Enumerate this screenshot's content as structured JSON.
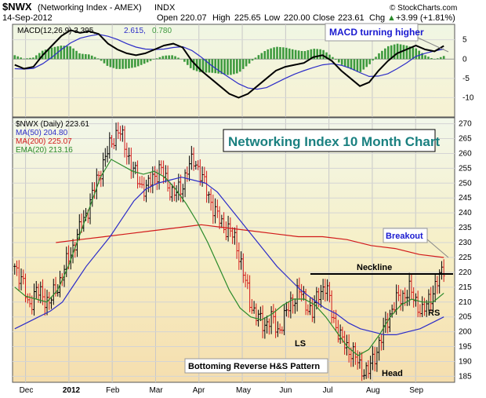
{
  "header": {
    "symbol": "$NWX",
    "name": "(Networking Index - AMEX)",
    "exchange": "INDX",
    "date": "14-Sep-2012",
    "open_label": "Open",
    "open": "220.07",
    "high_label": "High",
    "high": "225.65",
    "low_label": "Low",
    "low": "220.00",
    "close_label": "Close",
    "close": "223.61",
    "chg_label": "Chg",
    "chg": "+3.99 (+1.81%)",
    "chg_arrow": "▲",
    "watermark": "© StockCharts.com"
  },
  "colors": {
    "background_top": "#f2f7ea",
    "background_bottom": "#f5deae",
    "macd_line": "#000000",
    "signal_line": "#2c2cc8",
    "histogram": "#3e9a3e",
    "ma50": "#2c2cc8",
    "ma200": "#d21a1a",
    "ema20": "#2a8a2a",
    "up_bar": "#000000",
    "down_bar": "#d21a1a",
    "title_box": "#1a8080"
  },
  "chart_data": [
    {
      "type": "line",
      "panel": "macd",
      "legend": {
        "macd_label": "MACD(12,26,9) 3.395,",
        "signal_label": "2.615,",
        "hist_label": "0.780"
      },
      "ylim": [
        -15,
        9
      ],
      "yticks": [
        "5",
        "0",
        "-5",
        "-10"
      ],
      "months_x": [
        0.3,
        1.3,
        2.3,
        3.3,
        4.3,
        5.3,
        6.3,
        7.3,
        8.3,
        9.3
      ],
      "macd": [
        -1.5,
        -2.5,
        -2,
        1,
        3.5,
        6,
        7.5,
        6.8,
        7.2,
        6.5,
        4,
        2.5,
        1.5,
        1,
        1.5,
        2.5,
        3.5,
        4,
        3,
        -0.5,
        -3,
        -5,
        -7,
        -9,
        -10,
        -9,
        -7,
        -5,
        -3,
        -2,
        -1.5,
        -1,
        0.5,
        1,
        -0.5,
        -3,
        -5,
        -7,
        -6,
        -3,
        -0.5,
        1.5,
        2.5,
        3.5,
        2.5,
        2,
        3.4
      ],
      "signal": [
        -2.5,
        -2.6,
        -2.4,
        -1.2,
        0.5,
        2.5,
        4.2,
        5.4,
        6,
        6.4,
        5.9,
        5.1,
        4,
        3.1,
        2.6,
        2.5,
        2.6,
        3,
        3.2,
        2.2,
        0.5,
        -1.5,
        -3.2,
        -4.8,
        -6.4,
        -7.5,
        -7.8,
        -7.4,
        -6.2,
        -5,
        -3.9,
        -3,
        -2.2,
        -1.5,
        -1.2,
        -1.6,
        -2.4,
        -3.5,
        -4.5,
        -4.4,
        -3.8,
        -2.5,
        -1,
        0.7,
        1.5,
        2.1,
        2.6
      ],
      "annotation": "MACD turning higher"
    },
    {
      "type": "ohlc",
      "panel": "price",
      "title": "Networking Index 10 Month Chart",
      "legend": {
        "price_label": "$NWX (Daily) 223.61",
        "ma50_label": "MA(50) 204.80",
        "ma200_label": "MA(200) 225.07",
        "ema20_label": "EMA(20) 213.16"
      },
      "ylim": [
        183,
        272
      ],
      "yticks": [
        "270",
        "265",
        "260",
        "255",
        "250",
        "245",
        "240",
        "235",
        "230",
        "225",
        "220",
        "215",
        "210",
        "205",
        "200",
        "195",
        "190",
        "185"
      ],
      "xticks": [
        {
          "label": "Dec",
          "x": 0.3
        },
        {
          "label": "2012",
          "x": 1.3
        },
        {
          "label": "Feb",
          "x": 2.3
        },
        {
          "label": "Mar",
          "x": 3.3
        },
        {
          "label": "Apr",
          "x": 4.3
        },
        {
          "label": "May",
          "x": 5.3
        },
        {
          "label": "Jun",
          "x": 6.3
        },
        {
          "label": "Jul",
          "x": 7.3
        },
        {
          "label": "Aug",
          "x": 8.3
        },
        {
          "label": "Sep",
          "x": 9.3
        }
      ],
      "close_path": [
        222,
        218,
        208,
        214,
        212,
        210,
        214,
        220,
        226,
        232,
        238,
        244,
        252,
        258,
        264,
        268,
        262,
        255,
        250,
        248,
        252,
        255,
        250,
        246,
        248,
        255,
        258,
        252,
        246,
        240,
        236,
        234,
        230,
        220,
        210,
        205,
        202,
        205,
        200,
        205,
        210,
        214,
        210,
        206,
        214,
        215,
        205,
        198,
        195,
        192,
        188,
        186,
        192,
        198,
        205,
        210,
        212,
        214,
        210,
        206,
        212,
        216,
        222
      ],
      "ma50": [
        201,
        203,
        205,
        207,
        210,
        216,
        222,
        227,
        232,
        238,
        244,
        248,
        250,
        251,
        252,
        251,
        250,
        247,
        242,
        237,
        232,
        227,
        222,
        218,
        214,
        211,
        208,
        206,
        203,
        201,
        200,
        199,
        199,
        200,
        201,
        203,
        205
      ],
      "ma200": [
        230,
        231,
        232,
        233,
        234,
        235,
        236,
        235,
        234,
        233,
        232,
        232,
        231,
        229,
        228,
        226,
        225
      ],
      "ema20": [
        215,
        212,
        211,
        210,
        214,
        222,
        232,
        242,
        252,
        258,
        256,
        254,
        253,
        254,
        252,
        248,
        243,
        237,
        230,
        222,
        214,
        208,
        205,
        204,
        206,
        209,
        211,
        211,
        209,
        205,
        200,
        195,
        192,
        194,
        199,
        205,
        209,
        211,
        210,
        210,
        213
      ],
      "annotations": {
        "neckline": "Neckline",
        "breakout": "Breakout",
        "ls": "LS",
        "head": "Head",
        "rs": "RS",
        "pattern": "Bottoming Reverse H&S Pattern"
      }
    }
  ]
}
